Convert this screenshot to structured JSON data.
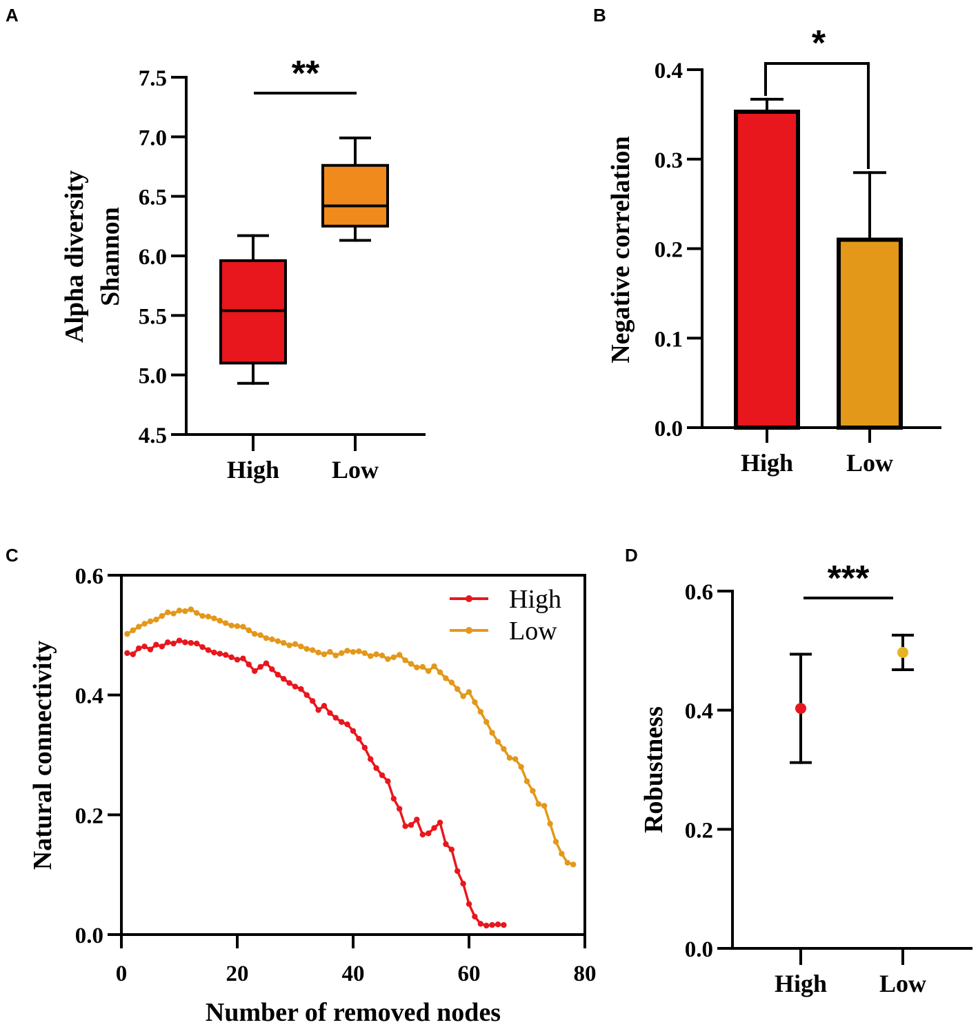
{
  "chart_data": [
    {
      "panel": "A",
      "type": "box",
      "ylabel": [
        "Alpha diversity",
        "Shannon"
      ],
      "ylim": [
        4.5,
        7.5
      ],
      "yticks": [
        "4.5",
        "5.0",
        "5.5",
        "6.0",
        "6.5",
        "7.0",
        "7.5"
      ],
      "categories": [
        "High",
        "Low"
      ],
      "boxes": [
        {
          "name": "High",
          "min": 4.93,
          "q1": 5.1,
          "median": 5.54,
          "q3": 5.96,
          "max": 6.17,
          "color": "#e8171d"
        },
        {
          "name": "Low",
          "min": 6.13,
          "q1": 6.25,
          "median": 6.42,
          "q3": 6.76,
          "max": 6.99,
          "color": "#f08a1d"
        }
      ],
      "significance": "**"
    },
    {
      "panel": "B",
      "type": "bar",
      "ylabel": "Negative correlation",
      "ylim": [
        0,
        0.4
      ],
      "yticks": [
        "0.0",
        "0.1",
        "0.2",
        "0.3",
        "0.4"
      ],
      "categories": [
        "High",
        "Low"
      ],
      "values": [
        0.353,
        0.21
      ],
      "errors": [
        0.014,
        0.075
      ],
      "colors": [
        "#e8171d",
        "#e3981a"
      ],
      "significance": "*"
    },
    {
      "panel": "C",
      "type": "line",
      "xlabel": "Number of removed nodes",
      "ylabel": "Natural connectivity",
      "xlim": [
        0,
        80
      ],
      "ylim": [
        0,
        0.6
      ],
      "xticks": [
        "0",
        "20",
        "40",
        "60",
        "80"
      ],
      "yticks": [
        "0.0",
        "0.2",
        "0.4",
        "0.6"
      ],
      "legend_position": "top-right",
      "series": [
        {
          "name": "High",
          "color": "#e8171d",
          "x": [
            1,
            2,
            3,
            4,
            5,
            6,
            7,
            8,
            9,
            10,
            11,
            12,
            13,
            14,
            15,
            16,
            17,
            18,
            19,
            20,
            21,
            22,
            23,
            24,
            25,
            26,
            27,
            28,
            29,
            30,
            31,
            32,
            33,
            34,
            35,
            36,
            37,
            38,
            39,
            40,
            41,
            42,
            43,
            44,
            45,
            46,
            47,
            48,
            49,
            50,
            51,
            52,
            53,
            54,
            55,
            56,
            57,
            58,
            59,
            60,
            61,
            62,
            63,
            64,
            65,
            66
          ],
          "y": [
            0.47,
            0.468,
            0.478,
            0.481,
            0.476,
            0.484,
            0.481,
            0.488,
            0.486,
            0.491,
            0.488,
            0.487,
            0.486,
            0.48,
            0.475,
            0.471,
            0.469,
            0.467,
            0.463,
            0.459,
            0.461,
            0.451,
            0.44,
            0.447,
            0.453,
            0.443,
            0.434,
            0.427,
            0.42,
            0.414,
            0.41,
            0.4,
            0.39,
            0.375,
            0.382,
            0.37,
            0.362,
            0.355,
            0.351,
            0.34,
            0.327,
            0.312,
            0.293,
            0.278,
            0.266,
            0.256,
            0.227,
            0.21,
            0.181,
            0.183,
            0.192,
            0.167,
            0.169,
            0.178,
            0.187,
            0.151,
            0.142,
            0.106,
            0.085,
            0.051,
            0.03,
            0.018,
            0.015,
            0.016,
            0.017,
            0.016
          ]
        },
        {
          "name": "Low",
          "color": "#e3981a",
          "x": [
            1,
            2,
            3,
            4,
            5,
            6,
            7,
            8,
            9,
            10,
            11,
            12,
            13,
            14,
            15,
            16,
            17,
            18,
            19,
            20,
            21,
            22,
            23,
            24,
            25,
            26,
            27,
            28,
            29,
            30,
            31,
            32,
            33,
            34,
            35,
            36,
            37,
            38,
            39,
            40,
            41,
            42,
            43,
            44,
            45,
            46,
            47,
            48,
            49,
            50,
            51,
            52,
            53,
            54,
            55,
            56,
            57,
            58,
            59,
            60,
            61,
            62,
            63,
            64,
            65,
            66,
            67,
            68,
            69,
            70,
            71,
            72,
            73,
            74,
            75,
            76,
            77,
            78
          ],
          "y": [
            0.502,
            0.508,
            0.514,
            0.519,
            0.523,
            0.526,
            0.532,
            0.538,
            0.536,
            0.541,
            0.54,
            0.543,
            0.537,
            0.532,
            0.531,
            0.528,
            0.524,
            0.52,
            0.516,
            0.515,
            0.514,
            0.508,
            0.502,
            0.5,
            0.495,
            0.493,
            0.49,
            0.487,
            0.483,
            0.485,
            0.481,
            0.477,
            0.475,
            0.471,
            0.468,
            0.472,
            0.466,
            0.47,
            0.474,
            0.472,
            0.473,
            0.47,
            0.465,
            0.468,
            0.466,
            0.46,
            0.463,
            0.467,
            0.458,
            0.452,
            0.446,
            0.447,
            0.44,
            0.448,
            0.438,
            0.428,
            0.421,
            0.41,
            0.398,
            0.405,
            0.388,
            0.372,
            0.355,
            0.337,
            0.322,
            0.31,
            0.295,
            0.293,
            0.28,
            0.256,
            0.24,
            0.218,
            0.215,
            0.185,
            0.155,
            0.135,
            0.12,
            0.117
          ]
        }
      ]
    },
    {
      "panel": "D",
      "type": "scatter",
      "ylabel": "Robustness",
      "ylim": [
        0,
        0.6
      ],
      "yticks": [
        "0.0",
        "0.2",
        "0.4",
        "0.6"
      ],
      "categories": [
        "High",
        "Low"
      ],
      "values": [
        0.403,
        0.497
      ],
      "error_low": [
        0.312,
        0.468
      ],
      "error_high": [
        0.494,
        0.526
      ],
      "colors": [
        "#e8171d",
        "#e6b422"
      ],
      "significance": "***"
    }
  ]
}
